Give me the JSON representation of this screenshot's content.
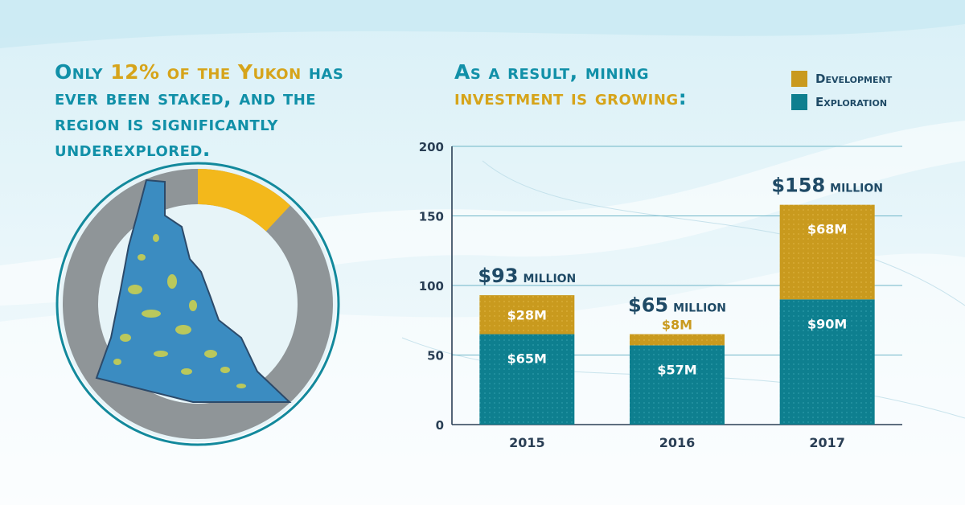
{
  "colors": {
    "teal": "#1190a8",
    "gold": "#d6a41a",
    "navy": "#1f4a66",
    "exploration": "#0e7f8f",
    "development": "#c99a1e",
    "donut_gold": "#f3b81b",
    "donut_gray": "#8f9598",
    "ring_teal": "#13899c",
    "map_blue": "#3b8cc1",
    "map_yellow": "#c8cf52"
  },
  "left": {
    "headline_pre": "Only ",
    "headline_highlight": "12% of the Yukon",
    "headline_post": " has ever been staked, and the region is significantly underexplored.",
    "staked_share": 0.12
  },
  "right": {
    "headline_pre": "As a result, mining ",
    "headline_highlight": "investment is growing",
    "headline_post": ":"
  },
  "legend": [
    {
      "label": "Development",
      "color_key": "development",
      "icon": "dotted-square-icon"
    },
    {
      "label": "Exploration",
      "color_key": "exploration",
      "icon": "dotted-square-icon"
    }
  ],
  "chart_data": {
    "type": "bar",
    "stacked": true,
    "categories": [
      "2015",
      "2016",
      "2017"
    ],
    "series": [
      {
        "name": "Exploration",
        "values": [
          65,
          57,
          90
        ],
        "labels": [
          "$65M",
          "$57M",
          "$90M"
        ]
      },
      {
        "name": "Development",
        "values": [
          28,
          8,
          68
        ],
        "labels": [
          "$28M",
          "$8M",
          "$68M"
        ]
      }
    ],
    "totals": [
      {
        "value": "$93",
        "unit": "million"
      },
      {
        "value": "$65",
        "unit": "million"
      },
      {
        "value": "$158",
        "unit": "million"
      }
    ],
    "ylim": [
      0,
      200
    ],
    "yticks": [
      0,
      50,
      100,
      150,
      200
    ],
    "grid": true,
    "legend_position": "top-right"
  }
}
